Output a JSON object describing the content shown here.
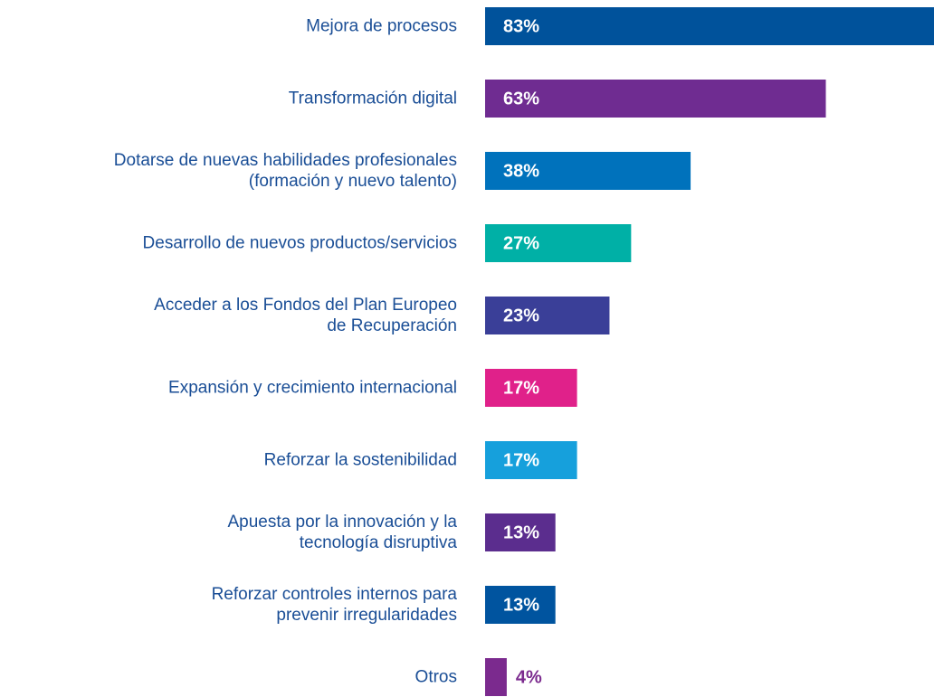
{
  "chart_data": {
    "type": "hbar",
    "categories": [
      "Mejora de procesos",
      "Transformación digital",
      "Dotarse de nuevas habilidades profesionales\n(formación y nuevo talento)",
      "Desarrollo de nuevos productos/servicios",
      "Acceder a los Fondos del Plan Europeo\nde Recuperación",
      "Expansión y crecimiento internacional",
      "Reforzar la sostenibilidad",
      "Apuesta por la innovación y la\ntecnología disruptiva",
      "Reforzar controles internos para\nprevenir irregularidades",
      "Otros"
    ],
    "values": [
      83,
      63,
      38,
      27,
      23,
      17,
      17,
      13,
      13,
      4
    ],
    "value_labels": [
      "83%",
      "63%",
      "38%",
      "27%",
      "23%",
      "17%",
      "17%",
      "13%",
      "13%",
      "4%"
    ],
    "colors": [
      "#00529b",
      "#6f2c91",
      "#0072bc",
      "#00b0a6",
      "#3a3f98",
      "#e0218a",
      "#16a0dc",
      "#5b2d8e",
      "#00549f",
      "#7b2a8e"
    ]
  }
}
